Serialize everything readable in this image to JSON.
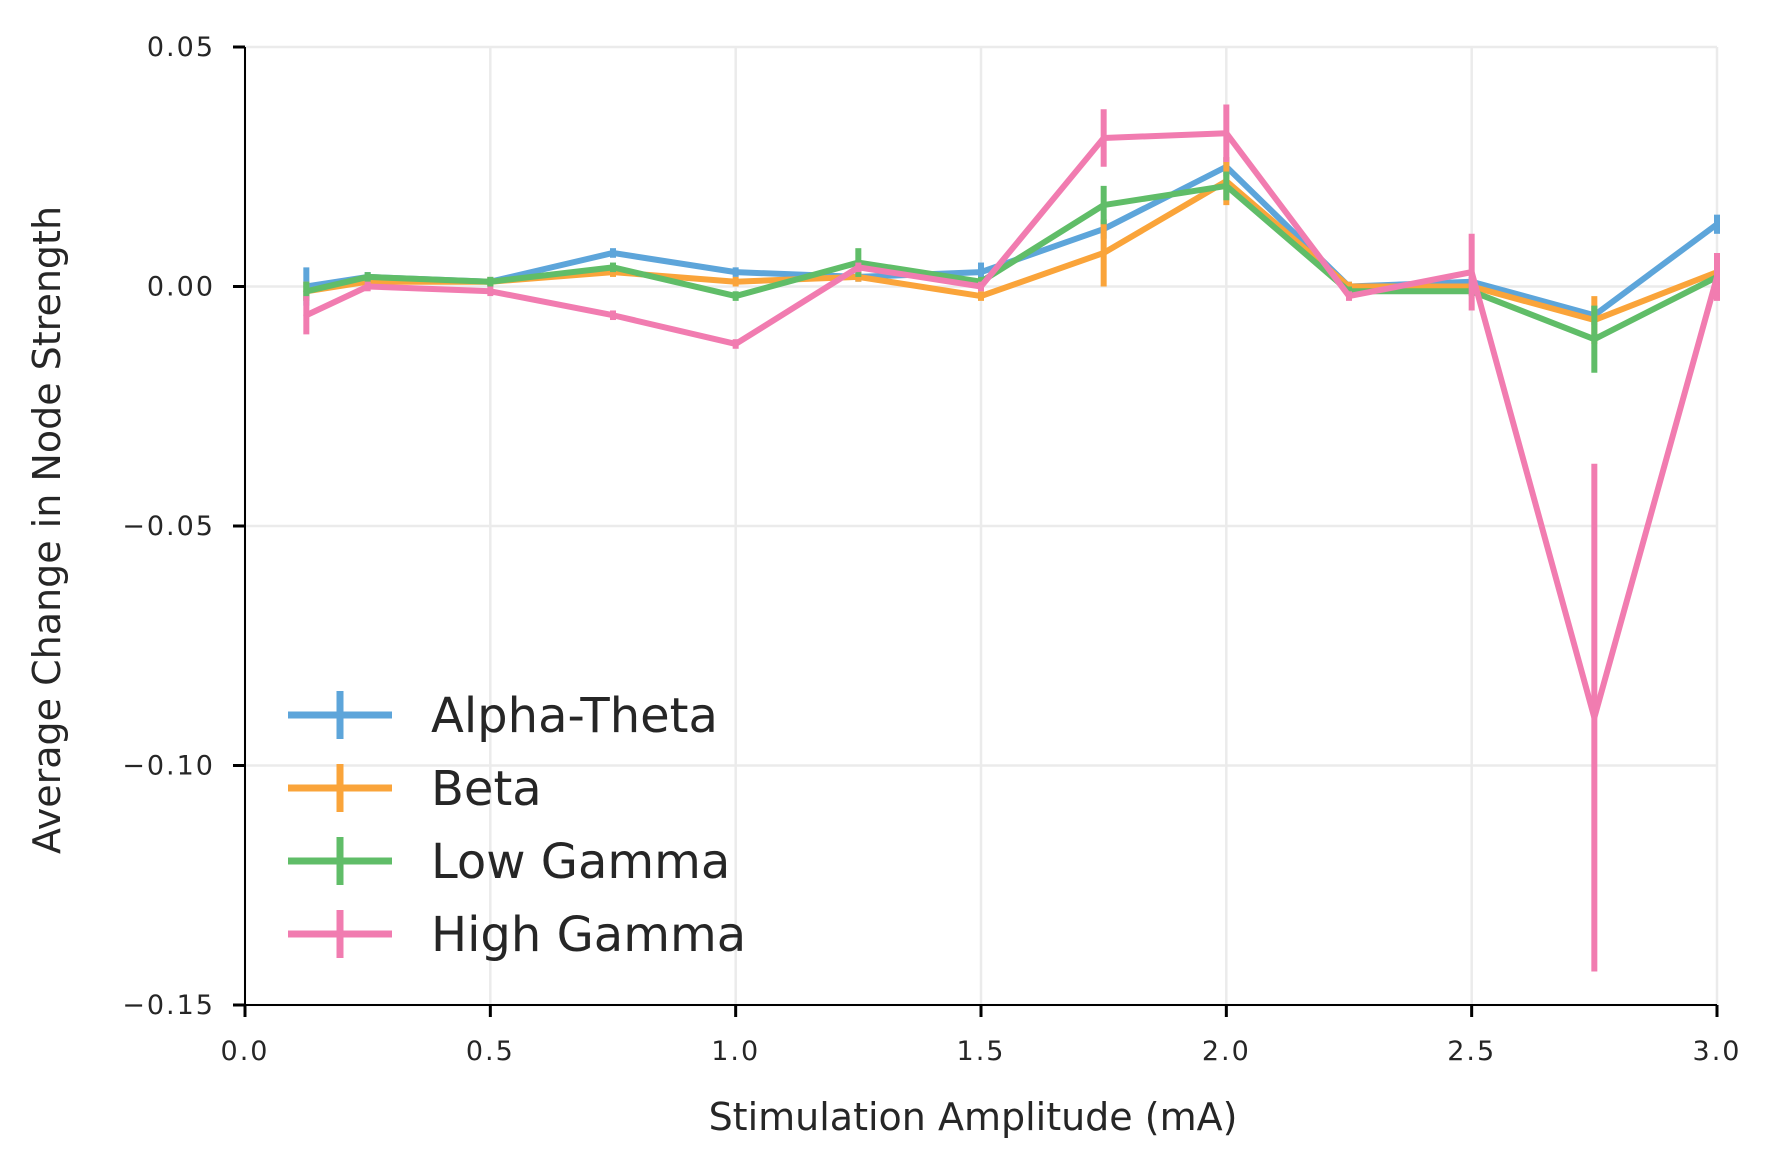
{
  "chart_data": {
    "type": "line",
    "xlabel": "Stimulation Amplitude (mA)",
    "ylabel": "Average Change in Node Strength",
    "xlim": [
      0.0,
      3.0
    ],
    "ylim": [
      -0.15,
      0.05
    ],
    "xticks": [
      0.0,
      0.5,
      1.0,
      1.5,
      2.0,
      2.5,
      3.0
    ],
    "xtick_labels": [
      "0.0",
      "0.5",
      "1.0",
      "1.5",
      "2.0",
      "2.5",
      "3.0"
    ],
    "yticks": [
      0.05,
      0.0,
      -0.05,
      -0.1,
      -0.15
    ],
    "ytick_labels": [
      "0.05",
      "0.00",
      "−0.05",
      "−0.10",
      "−0.15"
    ],
    "grid": true,
    "legend_position": "lower-left",
    "x": [
      0.125,
      0.25,
      0.5,
      0.75,
      1.0,
      1.25,
      1.5,
      1.75,
      2.0,
      2.25,
      2.5,
      2.75,
      3.0
    ],
    "series": [
      {
        "name": "Alpha-Theta",
        "color": "#5da5da",
        "values": [
          0.0,
          0.002,
          0.001,
          0.007,
          0.003,
          0.002,
          0.003,
          0.012,
          0.025,
          0.0,
          0.001,
          -0.006,
          0.013
        ],
        "errors": [
          0.004,
          0.001,
          0.001,
          0.001,
          0.001,
          0.001,
          0.002,
          0.002,
          0.002,
          0.001,
          0.001,
          0.002,
          0.002
        ]
      },
      {
        "name": "Beta",
        "color": "#faa43a",
        "values": [
          -0.001,
          0.001,
          0.001,
          0.003,
          0.001,
          0.002,
          -0.002,
          0.007,
          0.022,
          0.0,
          0.0,
          -0.007,
          0.003
        ],
        "errors": [
          0.002,
          0.001,
          0.001,
          0.001,
          0.001,
          0.001,
          0.001,
          0.007,
          0.005,
          0.001,
          0.001,
          0.005,
          0.002
        ]
      },
      {
        "name": "Low Gamma",
        "color": "#60bd68",
        "values": [
          -0.001,
          0.002,
          0.001,
          0.004,
          -0.002,
          0.005,
          0.001,
          0.017,
          0.021,
          -0.001,
          -0.001,
          -0.011,
          0.002
        ],
        "errors": [
          0.002,
          0.001,
          0.001,
          0.001,
          0.001,
          0.003,
          0.001,
          0.004,
          0.003,
          0.001,
          0.001,
          0.007,
          0.002
        ]
      },
      {
        "name": "High Gamma",
        "color": "#f17cb0",
        "values": [
          -0.006,
          0.0,
          -0.001,
          -0.006,
          -0.012,
          0.004,
          0.0,
          0.031,
          0.032,
          -0.002,
          0.003,
          -0.09,
          0.002
        ],
        "errors": [
          0.004,
          0.001,
          0.001,
          0.001,
          0.001,
          0.001,
          0.001,
          0.006,
          0.006,
          0.001,
          0.008,
          0.053,
          0.005
        ]
      }
    ]
  }
}
